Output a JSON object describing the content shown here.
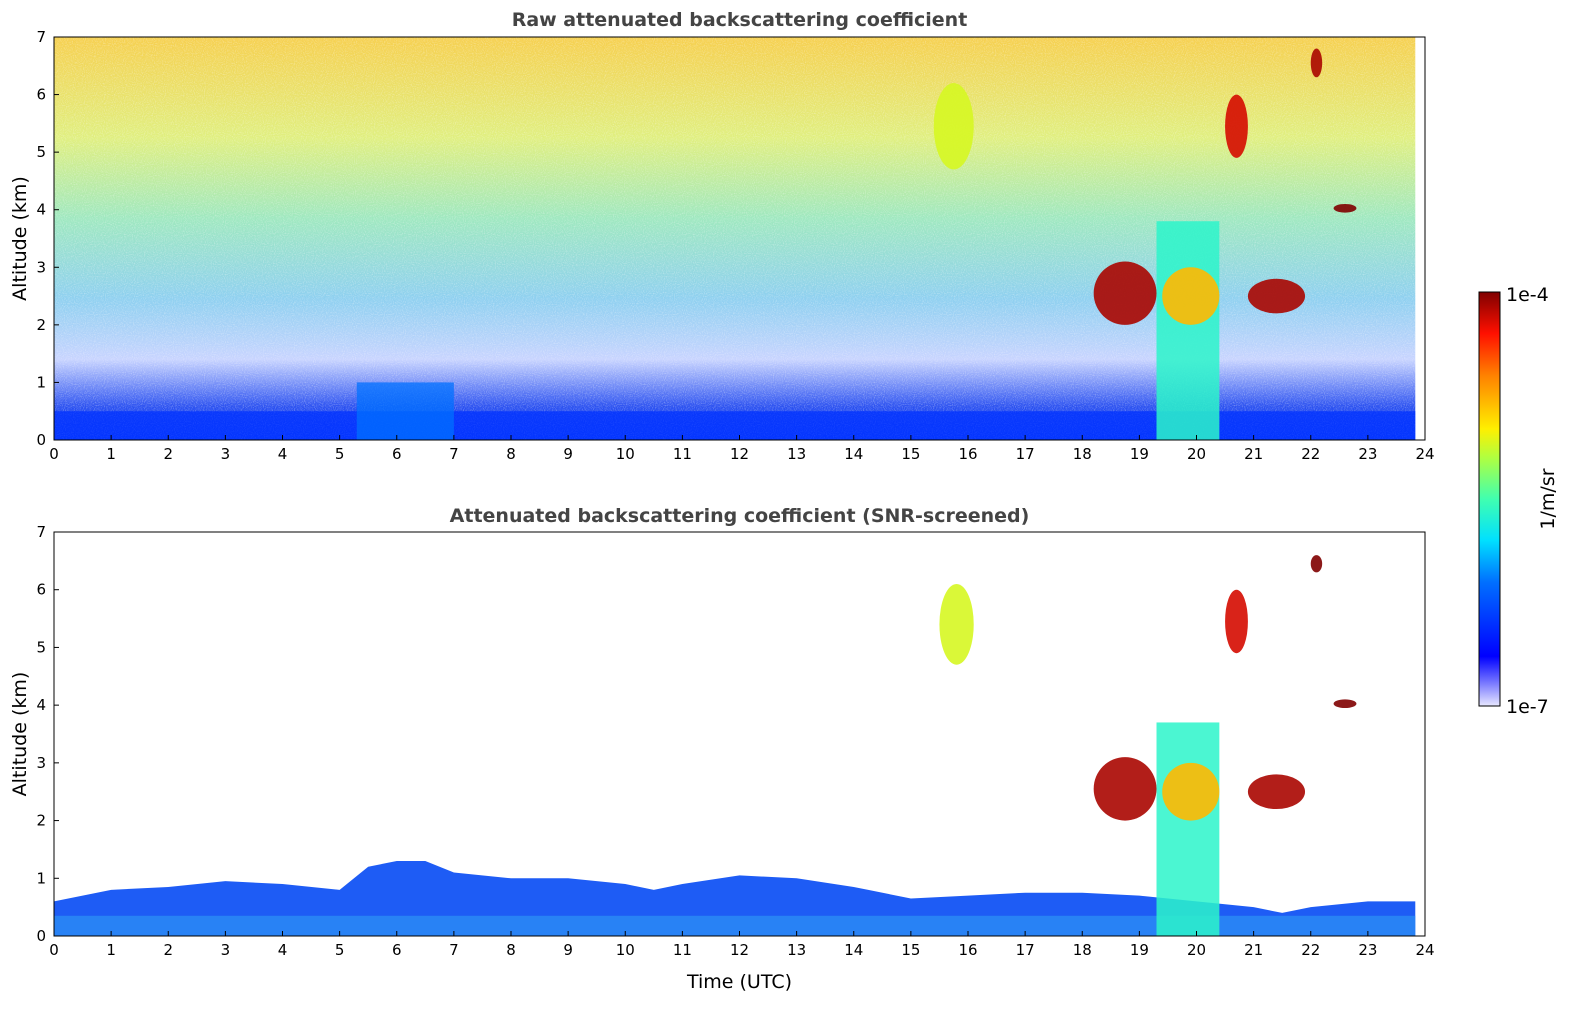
{
  "chart_data": [
    {
      "type": "heatmap",
      "title": "Raw attenuated backscattering coefficient",
      "xlabel": "",
      "ylabel": "Altitude (km)",
      "xlim": [
        0,
        24
      ],
      "ylim": [
        0,
        7
      ],
      "xticks": [
        "0",
        "1",
        "2",
        "3",
        "4",
        "5",
        "6",
        "7",
        "8",
        "9",
        "10",
        "11",
        "12",
        "13",
        "14",
        "15",
        "16",
        "17",
        "18",
        "19",
        "20",
        "21",
        "22",
        "23",
        "24"
      ],
      "yticks": [
        "0",
        "1",
        "2",
        "3",
        "4",
        "5",
        "6",
        "7"
      ],
      "data_end_time": 23.83,
      "features": [
        {
          "name": "boundary-layer",
          "t0": 0,
          "t1": 23.83,
          "z0": 0,
          "z1": 0.5,
          "log_value": -6.4
        },
        {
          "name": "aerosol-plume",
          "t0": 5.3,
          "t1": 7.0,
          "z0": 0,
          "z1": 1.0,
          "log_value": -6.1
        },
        {
          "name": "cirrus-streak",
          "t0": 15.4,
          "t1": 16.1,
          "z0": 4.7,
          "z1": 6.2,
          "log_value": -5.1
        },
        {
          "name": "cloud-layer",
          "t0": 18.2,
          "t1": 19.3,
          "z0": 2.0,
          "z1": 3.1,
          "log_value": -4.1
        },
        {
          "name": "precip-column",
          "t0": 19.3,
          "t1": 20.4,
          "z0": 0,
          "z1": 3.8,
          "log_value": -5.6
        },
        {
          "name": "cloud-core",
          "t0": 19.4,
          "t1": 20.4,
          "z0": 2.0,
          "z1": 3.0,
          "log_value": -4.8
        },
        {
          "name": "cloud-layer-2",
          "t0": 20.9,
          "t1": 21.9,
          "z0": 2.2,
          "z1": 2.8,
          "log_value": -4.1
        },
        {
          "name": "cloud-fragment",
          "t0": 20.5,
          "t1": 20.9,
          "z0": 4.9,
          "z1": 6.0,
          "log_value": -4.2
        },
        {
          "name": "cloud-fragment-2",
          "t0": 22.4,
          "t1": 22.8,
          "z0": 3.95,
          "z1": 4.1,
          "log_value": -4.0
        },
        {
          "name": "cloud-fragment-3",
          "t0": 22.0,
          "t1": 22.2,
          "z0": 6.3,
          "z1": 6.8,
          "log_value": -4.1
        }
      ]
    },
    {
      "type": "heatmap",
      "title": "Attenuated backscattering coefficient (SNR-screened)",
      "xlabel": "Time (UTC)",
      "ylabel": "Altitude (km)",
      "xlim": [
        0,
        24
      ],
      "ylim": [
        0,
        7
      ],
      "xticks": [
        "0",
        "1",
        "2",
        "3",
        "4",
        "5",
        "6",
        "7",
        "8",
        "9",
        "10",
        "11",
        "12",
        "13",
        "14",
        "15",
        "16",
        "17",
        "18",
        "19",
        "20",
        "21",
        "22",
        "23",
        "24"
      ],
      "yticks": [
        "0",
        "1",
        "2",
        "3",
        "4",
        "5",
        "6",
        "7"
      ],
      "boundary_layer_time": [
        0,
        1,
        2,
        3,
        4,
        5,
        5.5,
        6,
        6.5,
        7,
        8,
        9,
        10,
        10.5,
        11,
        12,
        13,
        14,
        15,
        16,
        17,
        18,
        19,
        20,
        21,
        21.5,
        22,
        23,
        23.83
      ],
      "boundary_layer_top_km": [
        0.6,
        0.8,
        0.85,
        0.95,
        0.9,
        0.8,
        1.2,
        1.3,
        1.3,
        1.1,
        1.0,
        1.0,
        0.9,
        0.8,
        0.9,
        1.05,
        1.0,
        0.85,
        0.65,
        0.7,
        0.75,
        0.75,
        0.7,
        0.6,
        0.5,
        0.4,
        0.5,
        0.6,
        0.6
      ],
      "features": [
        {
          "name": "cirrus-streak",
          "t0": 15.5,
          "t1": 16.1,
          "z0": 4.7,
          "z1": 6.1,
          "log_value": -5.1
        },
        {
          "name": "cloud-layer",
          "t0": 18.2,
          "t1": 19.3,
          "z0": 2.0,
          "z1": 3.1,
          "log_value": -4.1
        },
        {
          "name": "precip-column",
          "t0": 19.3,
          "t1": 20.4,
          "z0": 0,
          "z1": 3.7,
          "log_value": -5.6
        },
        {
          "name": "cloud-core",
          "t0": 19.4,
          "t1": 20.4,
          "z0": 2.0,
          "z1": 3.0,
          "log_value": -4.8
        },
        {
          "name": "cloud-layer-2",
          "t0": 20.9,
          "t1": 21.9,
          "z0": 2.2,
          "z1": 2.8,
          "log_value": -4.1
        },
        {
          "name": "cloud-fragment",
          "t0": 20.5,
          "t1": 20.9,
          "z0": 4.9,
          "z1": 6.0,
          "log_value": -4.2
        },
        {
          "name": "cloud-fragment-2",
          "t0": 22.4,
          "t1": 22.8,
          "z0": 3.95,
          "z1": 4.1,
          "log_value": -4.0
        },
        {
          "name": "cloud-fragment-3",
          "t0": 22.0,
          "t1": 22.2,
          "z0": 6.3,
          "z1": 6.6,
          "log_value": -4.0
        }
      ]
    }
  ],
  "colorbar": {
    "label": "1/m/sr",
    "max_label": "1e-4",
    "min_label": "1e-7",
    "log_min": -7,
    "log_max": -4
  }
}
